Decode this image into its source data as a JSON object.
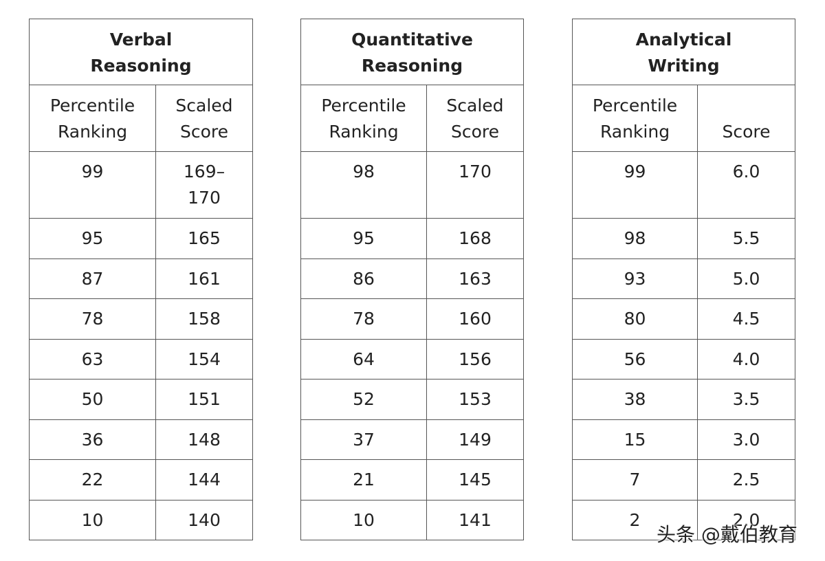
{
  "tables": [
    {
      "title": "Verbal Reasoning",
      "headers": [
        "Percentile Ranking",
        "Scaled Score"
      ],
      "rows": [
        [
          99,
          "169–170"
        ],
        [
          95,
          165
        ],
        [
          87,
          161
        ],
        [
          78,
          158
        ],
        [
          63,
          154
        ],
        [
          50,
          151
        ],
        [
          36,
          148
        ],
        [
          22,
          144
        ],
        [
          10,
          140
        ]
      ]
    },
    {
      "title": "Quantitative Reasoning",
      "headers": [
        "Percentile Ranking",
        "Scaled Score"
      ],
      "rows": [
        [
          98,
          170
        ],
        [
          95,
          168
        ],
        [
          86,
          163
        ],
        [
          78,
          160
        ],
        [
          64,
          156
        ],
        [
          52,
          153
        ],
        [
          37,
          149
        ],
        [
          21,
          145
        ],
        [
          10,
          141
        ]
      ]
    },
    {
      "title": "Analytical Writing",
      "headers": [
        "Percentile Ranking",
        "Score"
      ],
      "rows": [
        [
          99,
          "6.0"
        ],
        [
          98,
          "5.5"
        ],
        [
          93,
          "5.0"
        ],
        [
          80,
          "4.5"
        ],
        [
          56,
          "4.0"
        ],
        [
          38,
          "3.5"
        ],
        [
          15,
          "3.0"
        ],
        [
          7,
          "2.5"
        ],
        [
          2,
          "2.0"
        ]
      ]
    }
  ],
  "watermark": "头条 @戴伯教育"
}
